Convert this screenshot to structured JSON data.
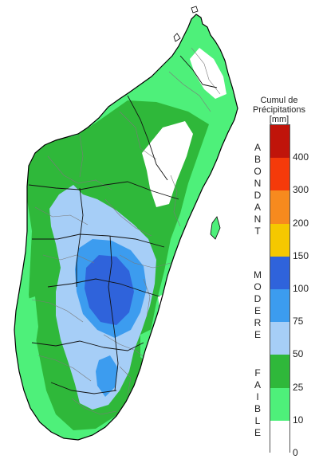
{
  "legend": {
    "title_line1": "Cumul de",
    "title_line2": "Précipitations",
    "unit": "[mm]",
    "categories": {
      "abondant": "ABONDANT",
      "modere": "MODERE",
      "faible": "FAIBLE"
    },
    "ticks": [
      "400",
      "300",
      "200",
      "150",
      "100",
      "75",
      "50",
      "25",
      "10",
      "0"
    ],
    "classes": [
      {
        "from": 0,
        "to": 10,
        "color": "#ffffff"
      },
      {
        "from": 10,
        "to": 25,
        "color": "#4ef07a"
      },
      {
        "from": 25,
        "to": 50,
        "color": "#2fb83a"
      },
      {
        "from": 50,
        "to": 75,
        "color": "#a6cef7"
      },
      {
        "from": 75,
        "to": 100,
        "color": "#3c9cef"
      },
      {
        "from": 100,
        "to": 150,
        "color": "#2f63db"
      },
      {
        "from": 150,
        "to": 200,
        "color": "#f5c800"
      },
      {
        "from": 200,
        "to": 300,
        "color": "#f78a1e"
      },
      {
        "from": 300,
        "to": 400,
        "color": "#f53a0a"
      },
      {
        "from": 400,
        "to": null,
        "color": "#c0140a"
      }
    ]
  }
}
